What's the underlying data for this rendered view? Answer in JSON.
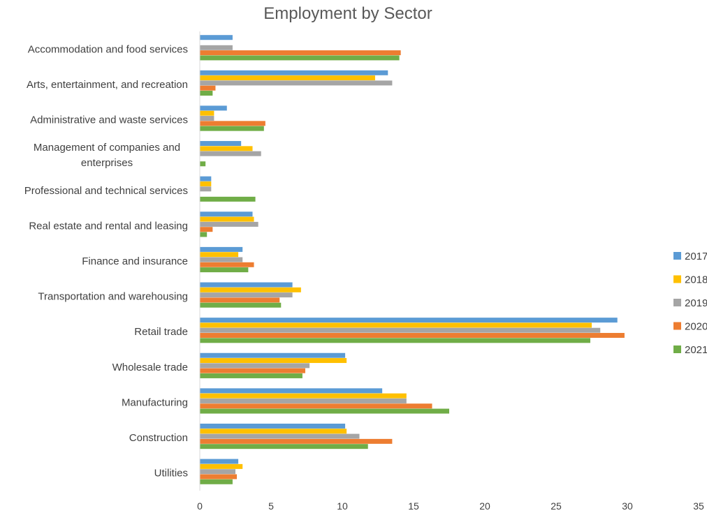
{
  "chart_data": {
    "type": "bar",
    "orientation": "horizontal",
    "title": "Employment by Sector",
    "xlabel": "",
    "ylabel": "",
    "xlim": [
      0,
      35
    ],
    "xticks": [
      0,
      5,
      10,
      15,
      20,
      25,
      30,
      35
    ],
    "grid": false,
    "legend_position": "right",
    "categories": [
      [
        "Accommodation and food services"
      ],
      [
        "Arts, entertainment, and recreation"
      ],
      [
        "Administrative and waste services"
      ],
      [
        "Management of companies and",
        "enterprises"
      ],
      [
        "Professional and technical services"
      ],
      [
        "Real estate and rental and leasing"
      ],
      [
        "Finance and insurance"
      ],
      [
        "Transportation and warehousing"
      ],
      [
        "Retail trade"
      ],
      [
        "Wholesale trade"
      ],
      [
        "Manufacturing"
      ],
      [
        "Construction"
      ],
      [
        "Utilities"
      ]
    ],
    "series": [
      {
        "name": "2017",
        "color": "#5B9BD5",
        "values": [
          2.3,
          13.2,
          1.9,
          2.9,
          0.8,
          3.7,
          3.0,
          6.5,
          29.3,
          10.2,
          12.8,
          10.2,
          2.7
        ]
      },
      {
        "name": "2018",
        "color": "#FFC000",
        "values": [
          null,
          12.3,
          1.0,
          3.7,
          0.8,
          3.8,
          2.7,
          7.1,
          27.5,
          10.3,
          14.5,
          10.3,
          3.0
        ]
      },
      {
        "name": "2019",
        "color": "#A5A5A5",
        "values": [
          2.3,
          13.5,
          1.0,
          4.3,
          0.8,
          4.1,
          3.0,
          6.5,
          28.1,
          7.7,
          14.5,
          11.2,
          2.5
        ]
      },
      {
        "name": "2020",
        "color": "#ED7D31",
        "values": [
          14.1,
          1.1,
          4.6,
          null,
          null,
          0.9,
          3.8,
          5.6,
          29.8,
          7.4,
          16.3,
          13.5,
          2.6
        ]
      },
      {
        "name": "2021",
        "color": "#70AD47",
        "values": [
          14.0,
          0.9,
          4.5,
          0.4,
          3.9,
          0.5,
          3.4,
          5.7,
          27.4,
          7.2,
          17.5,
          11.8,
          2.3
        ]
      }
    ]
  }
}
